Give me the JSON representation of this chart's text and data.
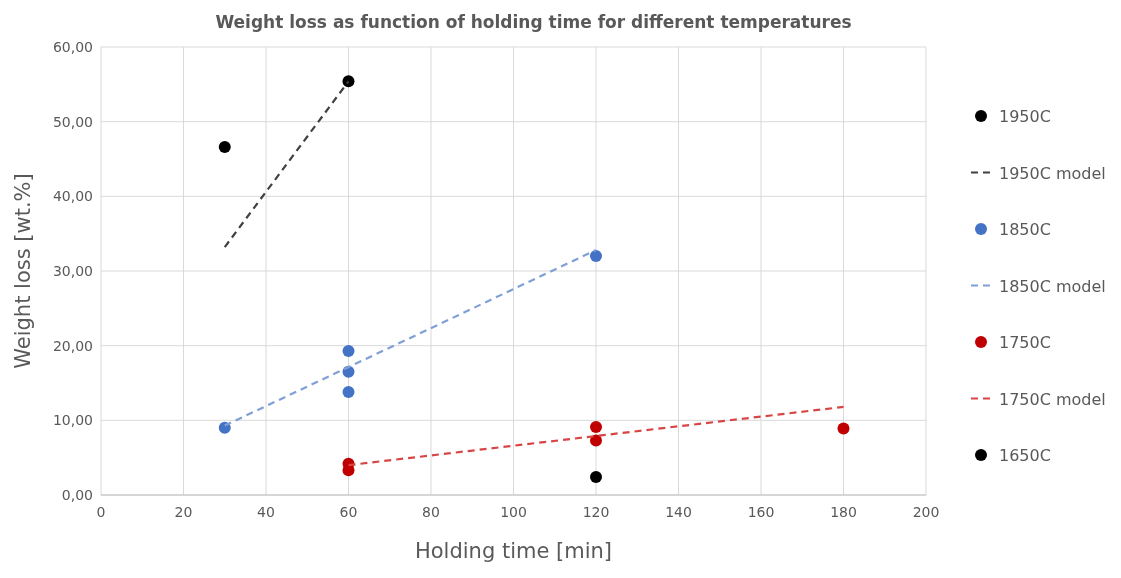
{
  "chart_data": {
    "type": "scatter",
    "title": "Weight loss as function of holding time for different temperatures",
    "xlabel": "Holding time [min]",
    "ylabel": "Weight loss [wt.%]",
    "xlim": [
      0,
      200
    ],
    "xticks": [
      0,
      20,
      40,
      60,
      80,
      100,
      120,
      140,
      160,
      180,
      200
    ],
    "ylim": [
      0,
      60
    ],
    "yticks": [
      {
        "value": 0,
        "label": "0,00"
      },
      {
        "value": 10,
        "label": "10,00"
      },
      {
        "value": 20,
        "label": "20,00"
      },
      {
        "value": 30,
        "label": "30,00"
      },
      {
        "value": 40,
        "label": "40,00"
      },
      {
        "value": 50,
        "label": "50,00"
      },
      {
        "value": 60,
        "label": "60,00"
      }
    ],
    "grid": true,
    "legend": "right",
    "marker": "circle",
    "series": [
      {
        "name": "1950C",
        "color": "#000000",
        "x": [
          30,
          60
        ],
        "values": [
          46.6,
          55.4
        ]
      },
      {
        "name": "1950C model",
        "type": "line",
        "marker": "none",
        "line_style": "dashed",
        "color": "#404040",
        "x": [
          30,
          60
        ],
        "values": [
          33.2,
          55.4
        ]
      },
      {
        "name": "1850C",
        "color": "#4472c4",
        "x": [
          30,
          60,
          60,
          60,
          120
        ],
        "values": [
          9.0,
          19.3,
          16.5,
          13.8,
          32.0
        ]
      },
      {
        "name": "1850C model",
        "type": "line",
        "marker": "none",
        "line_style": "dashed",
        "color": "#7f9fd6",
        "x": [
          30,
          120
        ],
        "values": [
          9.3,
          32.8
        ]
      },
      {
        "name": "1750C",
        "color": "#c00000",
        "x": [
          60,
          60,
          120,
          120,
          180
        ],
        "values": [
          4.2,
          3.3,
          9.1,
          7.3,
          8.9
        ]
      },
      {
        "name": "1750C model",
        "type": "line",
        "marker": "none",
        "line_style": "dashed",
        "color": "#d94444",
        "x": [
          60,
          180
        ],
        "values": [
          4.0,
          11.8
        ]
      },
      {
        "name": "1650C",
        "color": "#000000",
        "x": [
          120
        ],
        "values": [
          2.4
        ]
      }
    ]
  }
}
